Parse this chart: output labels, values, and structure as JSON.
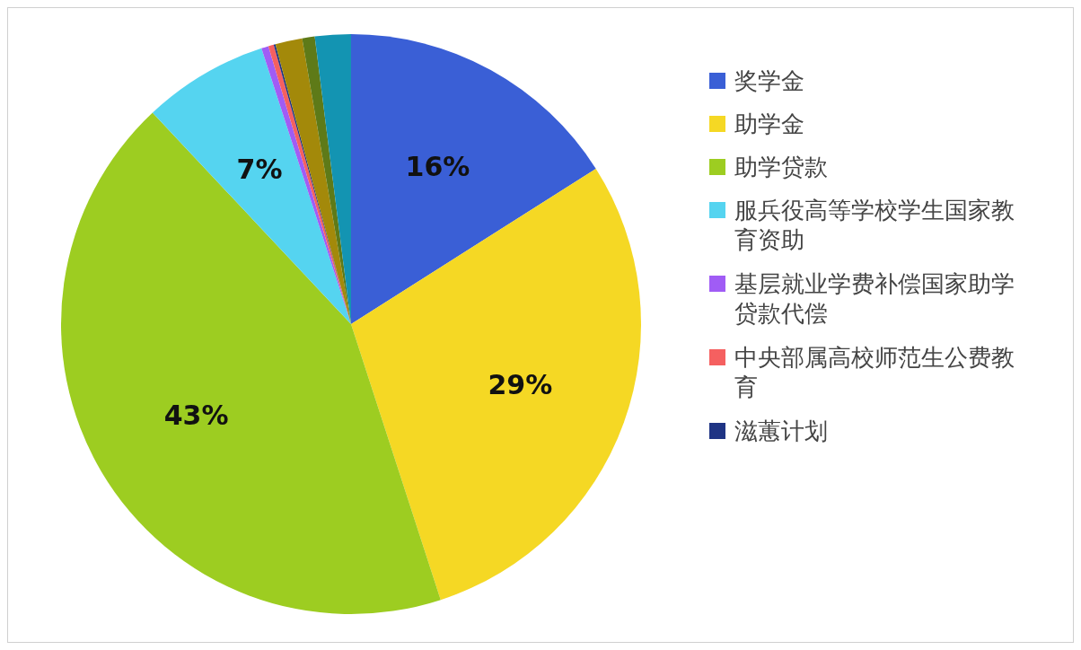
{
  "chart_data": {
    "type": "pie",
    "categories": [
      "奖学金",
      "助学金",
      "助学贷款",
      "服兵役高等学校学生国家教育资助",
      "基层就业学费补偿国家助学贷款代偿",
      "中央部属高校师范生公费教育",
      "滋蕙计划",
      null,
      null,
      null
    ],
    "values": [
      16,
      29,
      43,
      7,
      0.4,
      0.3,
      0.1,
      1.5,
      0.7,
      2.0
    ],
    "colors": [
      "#3a5fd6",
      "#f5d824",
      "#9dcd21",
      "#55d4f0",
      "#a05cf5",
      "#f56060",
      "#1f3484",
      "#a3890a",
      "#5e7a18",
      "#1394b2"
    ],
    "value_labels": [
      "16%",
      "29%",
      "43%",
      "7%",
      null,
      null,
      null,
      null,
      null,
      null
    ],
    "legend": "right"
  }
}
